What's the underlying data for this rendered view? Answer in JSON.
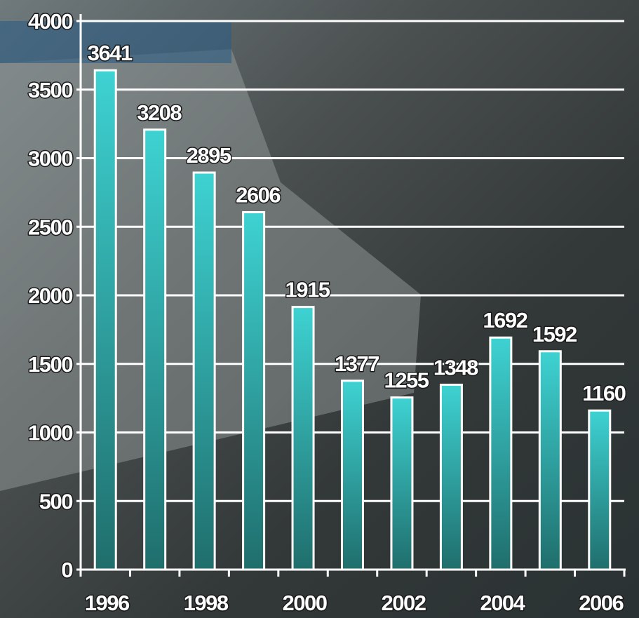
{
  "chart_data": {
    "type": "bar",
    "categories": [
      "1996",
      null,
      "1998",
      null,
      "2000",
      null,
      "2002",
      null,
      "2004",
      null,
      "2006"
    ],
    "values": [
      3641,
      3208,
      2895,
      2606,
      1915,
      1377,
      1255,
      1348,
      1692,
      1592,
      1160
    ],
    "color": "#34c4c4",
    "ylim": [
      0,
      4000
    ],
    "yticks": [
      0,
      500,
      1000,
      1500,
      2000,
      2500,
      3000,
      3500,
      4000
    ],
    "grid": true
  }
}
